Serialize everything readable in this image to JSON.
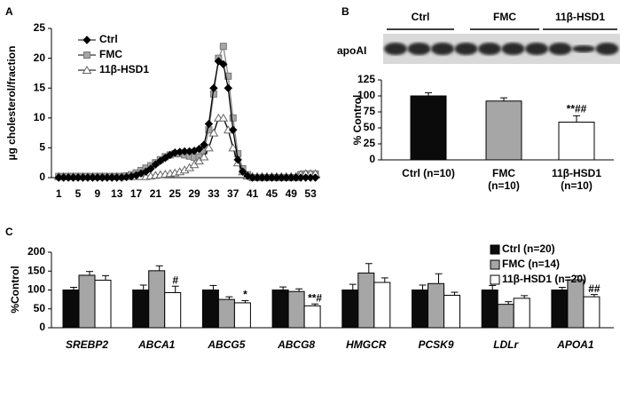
{
  "chart_data": [
    {
      "type": "line",
      "panel_label": "A",
      "y_label": "µg cholesterol/fraction",
      "x": [
        1,
        2,
        3,
        4,
        5,
        6,
        7,
        8,
        9,
        10,
        11,
        12,
        13,
        14,
        15,
        16,
        17,
        18,
        19,
        20,
        21,
        22,
        23,
        24,
        25,
        26,
        27,
        28,
        29,
        30,
        31,
        32,
        33,
        34,
        35,
        36,
        37,
        38,
        39,
        40,
        41,
        42,
        43,
        44,
        45,
        46,
        47,
        48,
        49,
        50,
        51,
        52,
        53,
        54
      ],
      "xlim": [
        -0.5,
        55
      ],
      "xticks": [
        1,
        5,
        9,
        13,
        17,
        21,
        25,
        29,
        33,
        37,
        41,
        45,
        49,
        53
      ],
      "ylim": [
        0,
        25
      ],
      "yticks": [
        0,
        5,
        10,
        15,
        20,
        25
      ],
      "series": [
        {
          "name": "Ctrl",
          "color": "#000000",
          "marker": "diamond",
          "values": [
            0,
            0,
            0,
            0,
            0,
            0,
            0,
            0,
            0,
            0,
            0,
            0,
            0,
            0,
            0.1,
            0.2,
            0.4,
            0.7,
            1.0,
            1.5,
            2.2,
            2.8,
            3.3,
            3.8,
            4.2,
            4.3,
            4.4,
            4.4,
            4.5,
            4.8,
            5.5,
            9,
            15,
            19.5,
            19,
            15,
            8,
            3,
            1,
            0.3,
            0,
            0,
            0,
            0,
            0,
            0,
            0,
            0,
            0,
            0,
            0,
            0,
            0,
            0
          ]
        },
        {
          "name": "FMC",
          "color": "#a6a6a6",
          "marker": "square",
          "values": [
            0.2,
            0.2,
            0.2,
            0.2,
            0.2,
            0.2,
            0.2,
            0.2,
            0.2,
            0.2,
            0.2,
            0.2,
            0.2,
            0.2,
            0.3,
            0.5,
            0.8,
            1.2,
            1.6,
            2.0,
            2.5,
            3.0,
            3.5,
            3.8,
            4.0,
            4.0,
            3.8,
            3.6,
            3.4,
            3.5,
            4.5,
            8,
            14,
            20,
            22,
            17,
            10,
            4,
            1.5,
            0.5,
            0,
            0,
            0,
            0,
            0,
            0,
            0,
            0,
            0,
            0,
            0.5,
            0.6,
            0.6,
            0.6
          ]
        },
        {
          "name": "11β-HSD1",
          "color": "#ffffff",
          "marker": "triangle",
          "values": [
            0.2,
            0.2,
            0.2,
            0.2,
            0.2,
            0.2,
            0.2,
            0.2,
            0.2,
            0.2,
            0.2,
            0.2,
            0.2,
            0.2,
            0.2,
            0.2,
            0.2,
            0.2,
            0.2,
            0.3,
            0.4,
            0.5,
            0.6,
            0.7,
            0.8,
            1.0,
            1.3,
            1.7,
            2.2,
            2.8,
            3.5,
            5,
            7.5,
            10,
            10,
            8,
            5,
            2.5,
            1,
            0.3,
            0.2,
            0.2,
            0.2,
            0.2,
            0.2,
            0.2,
            0.2,
            0.2,
            0.2,
            0.2,
            0.6,
            0.7,
            0.7,
            0.7
          ]
        }
      ]
    },
    {
      "type": "bar",
      "panel_label": "B",
      "y_label": "% Control",
      "blot": {
        "label": "apoAI",
        "groups": [
          "Ctrl",
          "FMC",
          "11β-HSD1"
        ]
      },
      "categories": [
        "Ctrl (n=10)",
        "FMC\n(n=10)",
        "11β-HSD1\n(n=10)"
      ],
      "values": [
        100,
        92,
        59
      ],
      "errors": [
        5,
        5,
        10
      ],
      "colors": [
        "#0b0b0b",
        "#a6a6a6",
        "#ffffff"
      ],
      "significance": [
        null,
        null,
        "**##"
      ],
      "ylim": [
        0,
        125
      ],
      "yticks": [
        0,
        25,
        50,
        75,
        100,
        125
      ]
    },
    {
      "type": "grouped_bar",
      "panel_label": "C",
      "y_label": "%Control",
      "categories": [
        "SREBP2",
        "ABCA1",
        "ABCG5",
        "ABCG8",
        "HMGCR",
        "PCSK9",
        "LDLr",
        "APOA1"
      ],
      "ylim": [
        0,
        200
      ],
      "yticks": [
        0,
        50,
        100,
        150,
        200
      ],
      "series": [
        {
          "name": "Ctrl (n=20)",
          "color": "#0b0b0b",
          "values": [
            100,
            100,
            100,
            100,
            100,
            100,
            100,
            100
          ],
          "errors": [
            7,
            13,
            12,
            8,
            15,
            13,
            12,
            7
          ],
          "significance": [
            null,
            null,
            null,
            null,
            null,
            null,
            null,
            null
          ]
        },
        {
          "name": "FMC (n=14)",
          "color": "#a6a6a6",
          "values": [
            139,
            151,
            75,
            96,
            145,
            117,
            62,
            127
          ],
          "errors": [
            10,
            13,
            7,
            7,
            25,
            26,
            7,
            10
          ],
          "significance": [
            null,
            null,
            null,
            null,
            null,
            null,
            null,
            null
          ]
        },
        {
          "name": "11β-HSD1 (n=20)",
          "color": "#ffffff",
          "values": [
            126,
            93,
            66,
            58,
            120,
            86,
            78,
            82
          ],
          "errors": [
            12,
            17,
            6,
            5,
            12,
            8,
            7,
            6
          ],
          "significance": [
            null,
            "#",
            "*",
            "**#",
            null,
            null,
            null,
            "##"
          ]
        }
      ]
    }
  ]
}
